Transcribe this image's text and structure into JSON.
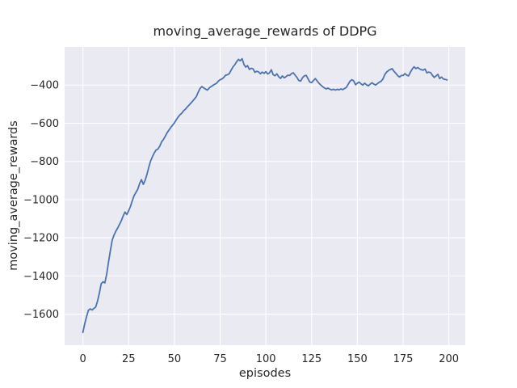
{
  "chart_data": {
    "type": "line",
    "title": "moving_average_rewards of DDPG",
    "xlabel": "episodes",
    "ylabel": "moving_average_rewards",
    "x_ticks": [
      0,
      25,
      50,
      75,
      100,
      125,
      150,
      175,
      200
    ],
    "y_ticks": [
      -400,
      -600,
      -800,
      -1000,
      -1200,
      -1400,
      -1600
    ],
    "xlim": [
      -10,
      209
    ],
    "ylim": [
      -1762,
      -200
    ],
    "grid": true,
    "legend_position": "none",
    "style": {
      "line_color": "#4C72B0",
      "plot_bg": "#EAEAF2",
      "grid_color": "#FFFFFF",
      "text_color": "#262626",
      "figure_bg": "#FFFFFF",
      "line_width": 1.8
    },
    "series": [
      {
        "name": "moving_average_rewards",
        "x_start": 0,
        "x_step": 1,
        "values": [
          -1695,
          -1650,
          -1612,
          -1580,
          -1572,
          -1578,
          -1570,
          -1562,
          -1530,
          -1490,
          -1440,
          -1430,
          -1436,
          -1390,
          -1325,
          -1268,
          -1212,
          -1185,
          -1165,
          -1148,
          -1130,
          -1110,
          -1085,
          -1065,
          -1078,
          -1058,
          -1035,
          -1005,
          -978,
          -962,
          -945,
          -915,
          -895,
          -920,
          -898,
          -868,
          -830,
          -798,
          -775,
          -755,
          -740,
          -735,
          -720,
          -698,
          -685,
          -668,
          -650,
          -636,
          -622,
          -610,
          -598,
          -582,
          -568,
          -556,
          -548,
          -535,
          -527,
          -515,
          -505,
          -494,
          -484,
          -472,
          -460,
          -438,
          -418,
          -408,
          -414,
          -421,
          -426,
          -416,
          -408,
          -402,
          -396,
          -391,
          -380,
          -372,
          -368,
          -360,
          -348,
          -346,
          -340,
          -322,
          -305,
          -294,
          -278,
          -265,
          -273,
          -262,
          -292,
          -306,
          -298,
          -318,
          -312,
          -315,
          -333,
          -328,
          -331,
          -341,
          -332,
          -339,
          -330,
          -342,
          -336,
          -320,
          -346,
          -351,
          -341,
          -356,
          -365,
          -352,
          -362,
          -356,
          -348,
          -350,
          -340,
          -336,
          -348,
          -360,
          -376,
          -379,
          -362,
          -352,
          -349,
          -366,
          -384,
          -387,
          -376,
          -366,
          -378,
          -390,
          -400,
          -408,
          -415,
          -420,
          -416,
          -422,
          -425,
          -422,
          -426,
          -422,
          -425,
          -420,
          -424,
          -418,
          -412,
          -395,
          -380,
          -372,
          -378,
          -398,
          -390,
          -384,
          -394,
          -400,
          -390,
          -398,
          -404,
          -395,
          -388,
          -395,
          -400,
          -392,
          -385,
          -380,
          -368,
          -345,
          -332,
          -324,
          -318,
          -314,
          -328,
          -338,
          -350,
          -358,
          -350,
          -350,
          -340,
          -348,
          -352,
          -332,
          -316,
          -304,
          -314,
          -308,
          -315,
          -320,
          -322,
          -316,
          -336,
          -332,
          -334,
          -348,
          -360,
          -352,
          -344,
          -366,
          -358,
          -368,
          -370,
          -373
        ]
      }
    ]
  }
}
